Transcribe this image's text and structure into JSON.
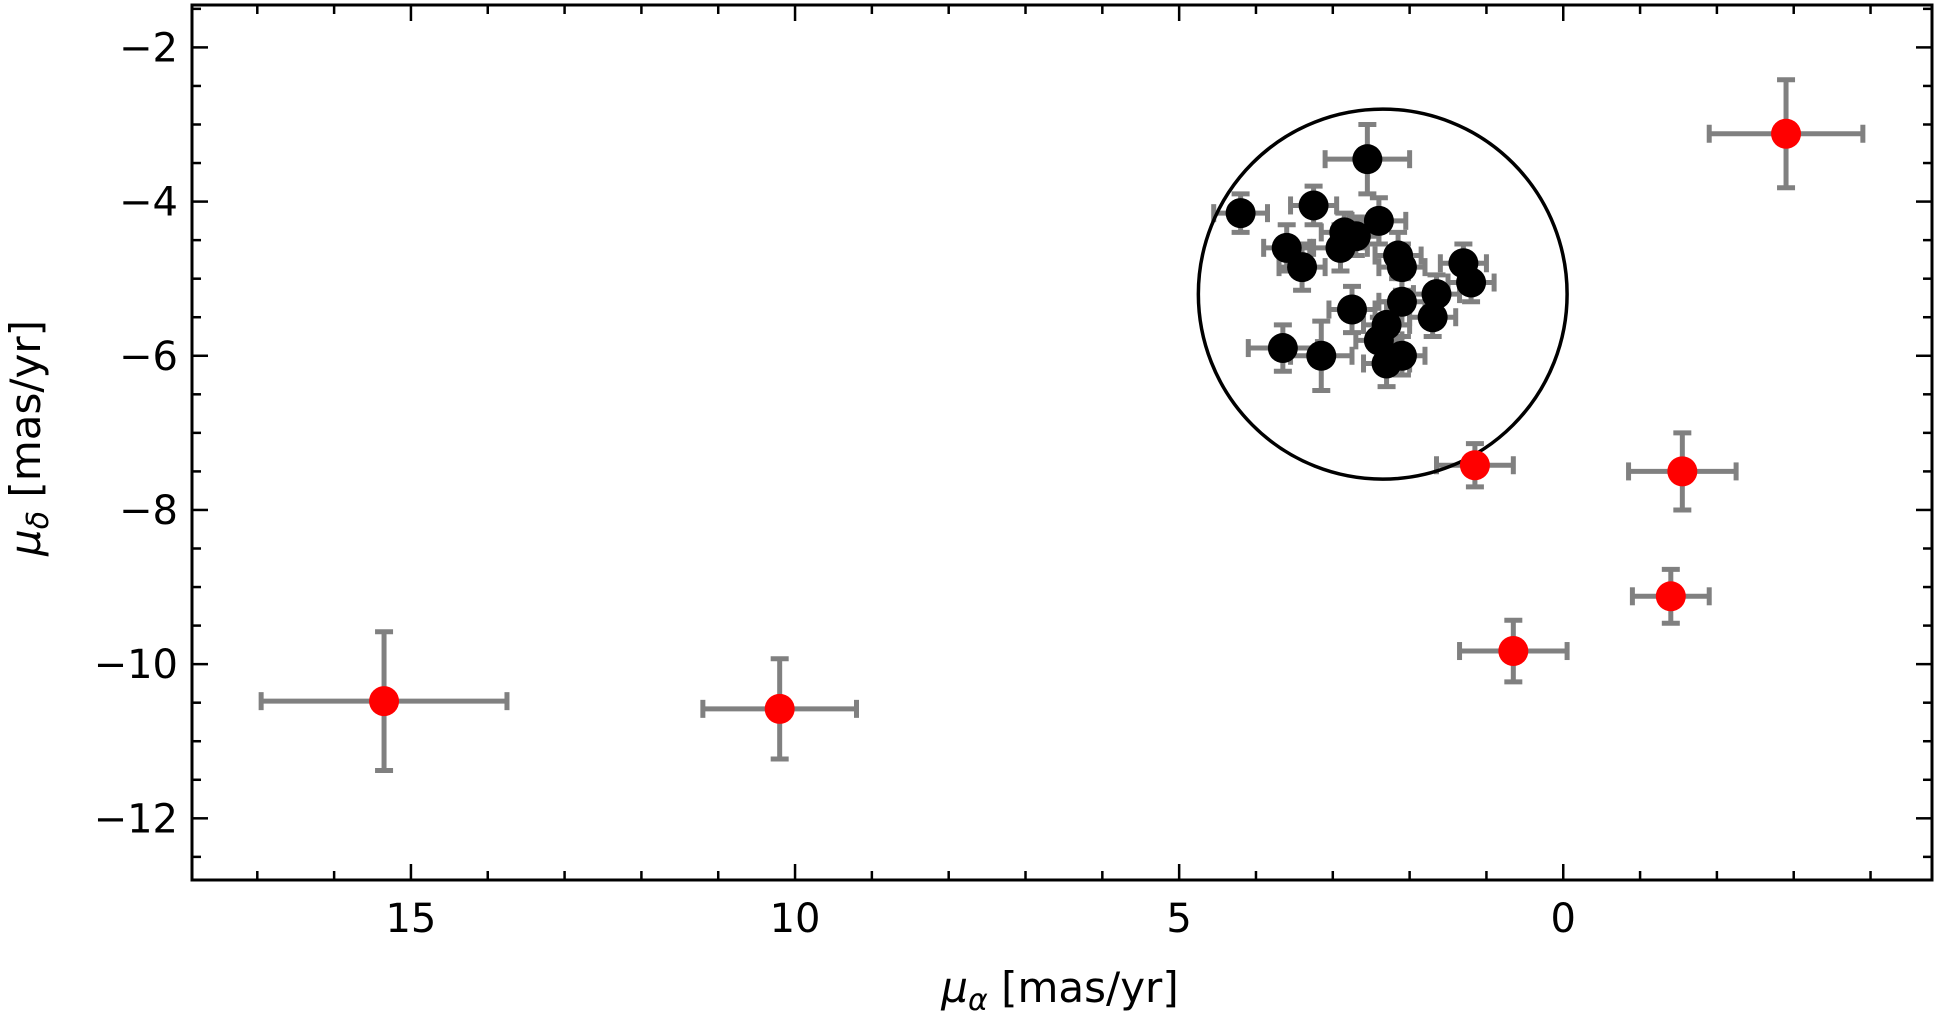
{
  "chart_data": {
    "type": "scatter",
    "title": "",
    "xlabel": {
      "symbol": "μ",
      "sub": "α",
      "unit": " [mas/yr]"
    },
    "ylabel": {
      "symbol": "μ",
      "sub": "δ",
      "unit": " [mas/yr]"
    },
    "xlim": [
      17.85,
      -4.8
    ],
    "ylim": [
      -12.8,
      -1.45
    ],
    "x_reversed": true,
    "xticks": [
      15,
      10,
      5,
      0
    ],
    "xtick_labels": [
      "15",
      "10",
      "5",
      "0"
    ],
    "x_minor_step": 1,
    "yticks": [
      -2,
      -4,
      -6,
      -8,
      -10,
      -12
    ],
    "ytick_labels": [
      "−2",
      "−4",
      "−6",
      "−8",
      "−10",
      "−12"
    ],
    "y_minor_step": 0.5,
    "grid": false,
    "legend": "none",
    "colors": {
      "members": "#000000",
      "outliers": "#ff0000",
      "errorbar": "#808080",
      "circle": "#000000"
    },
    "circle": {
      "cx": 2.35,
      "cy": -5.2,
      "r": 2.4
    },
    "series": [
      {
        "color": "#000000",
        "points": [
          {
            "x": 4.2,
            "y": -4.15,
            "xerr": 0.35,
            "yerr": 0.25
          },
          {
            "x": 3.25,
            "y": -4.05,
            "xerr": 0.3,
            "yerr": 0.25
          },
          {
            "x": 2.55,
            "y": -3.45,
            "xerr": 0.55,
            "yerr": 0.45
          },
          {
            "x": 3.6,
            "y": -4.6,
            "xerr": 0.3,
            "yerr": 0.3
          },
          {
            "x": 2.85,
            "y": -4.4,
            "xerr": 0.3,
            "yerr": 0.25
          },
          {
            "x": 2.7,
            "y": -4.45,
            "xerr": 0.3,
            "yerr": 0.25
          },
          {
            "x": 2.4,
            "y": -4.25,
            "xerr": 0.35,
            "yerr": 0.3
          },
          {
            "x": 2.9,
            "y": -4.6,
            "xerr": 0.35,
            "yerr": 0.3
          },
          {
            "x": 3.4,
            "y": -4.85,
            "xerr": 0.3,
            "yerr": 0.3
          },
          {
            "x": 2.15,
            "y": -4.7,
            "xerr": 0.3,
            "yerr": 0.3
          },
          {
            "x": 2.1,
            "y": -4.85,
            "xerr": 0.3,
            "yerr": 0.3
          },
          {
            "x": 1.3,
            "y": -4.8,
            "xerr": 0.3,
            "yerr": 0.25
          },
          {
            "x": 1.2,
            "y": -5.05,
            "xerr": 0.3,
            "yerr": 0.25
          },
          {
            "x": 2.1,
            "y": -5.3,
            "xerr": 0.3,
            "yerr": 0.3
          },
          {
            "x": 1.65,
            "y": -5.2,
            "xerr": 0.3,
            "yerr": 0.25
          },
          {
            "x": 2.75,
            "y": -5.4,
            "xerr": 0.3,
            "yerr": 0.3
          },
          {
            "x": 2.3,
            "y": -5.6,
            "xerr": 0.3,
            "yerr": 0.3
          },
          {
            "x": 1.7,
            "y": -5.5,
            "xerr": 0.3,
            "yerr": 0.25
          },
          {
            "x": 2.4,
            "y": -5.8,
            "xerr": 0.3,
            "yerr": 0.3
          },
          {
            "x": 3.65,
            "y": -5.9,
            "xerr": 0.45,
            "yerr": 0.3
          },
          {
            "x": 3.15,
            "y": -6.0,
            "xerr": 0.4,
            "yerr": 0.45
          },
          {
            "x": 2.1,
            "y": -6.0,
            "xerr": 0.3,
            "yerr": 0.25
          },
          {
            "x": 2.3,
            "y": -6.1,
            "xerr": 0.3,
            "yerr": 0.3
          }
        ]
      },
      {
        "color": "#ff0000",
        "points": [
          {
            "x": 15.35,
            "y": -10.48,
            "xerr": 1.6,
            "yerr": 0.9
          },
          {
            "x": 10.2,
            "y": -10.58,
            "xerr": 1.0,
            "yerr": 0.65
          },
          {
            "x": 1.15,
            "y": -7.42,
            "xerr": 0.5,
            "yerr": 0.28
          },
          {
            "x": 0.65,
            "y": -9.83,
            "xerr": 0.7,
            "yerr": 0.4
          },
          {
            "x": -1.55,
            "y": -7.5,
            "xerr": 0.7,
            "yerr": 0.5
          },
          {
            "x": -1.4,
            "y": -9.12,
            "xerr": 0.5,
            "yerr": 0.35
          },
          {
            "x": -2.9,
            "y": -3.12,
            "xerr": 1.0,
            "yerr": 0.7
          }
        ]
      }
    ]
  }
}
